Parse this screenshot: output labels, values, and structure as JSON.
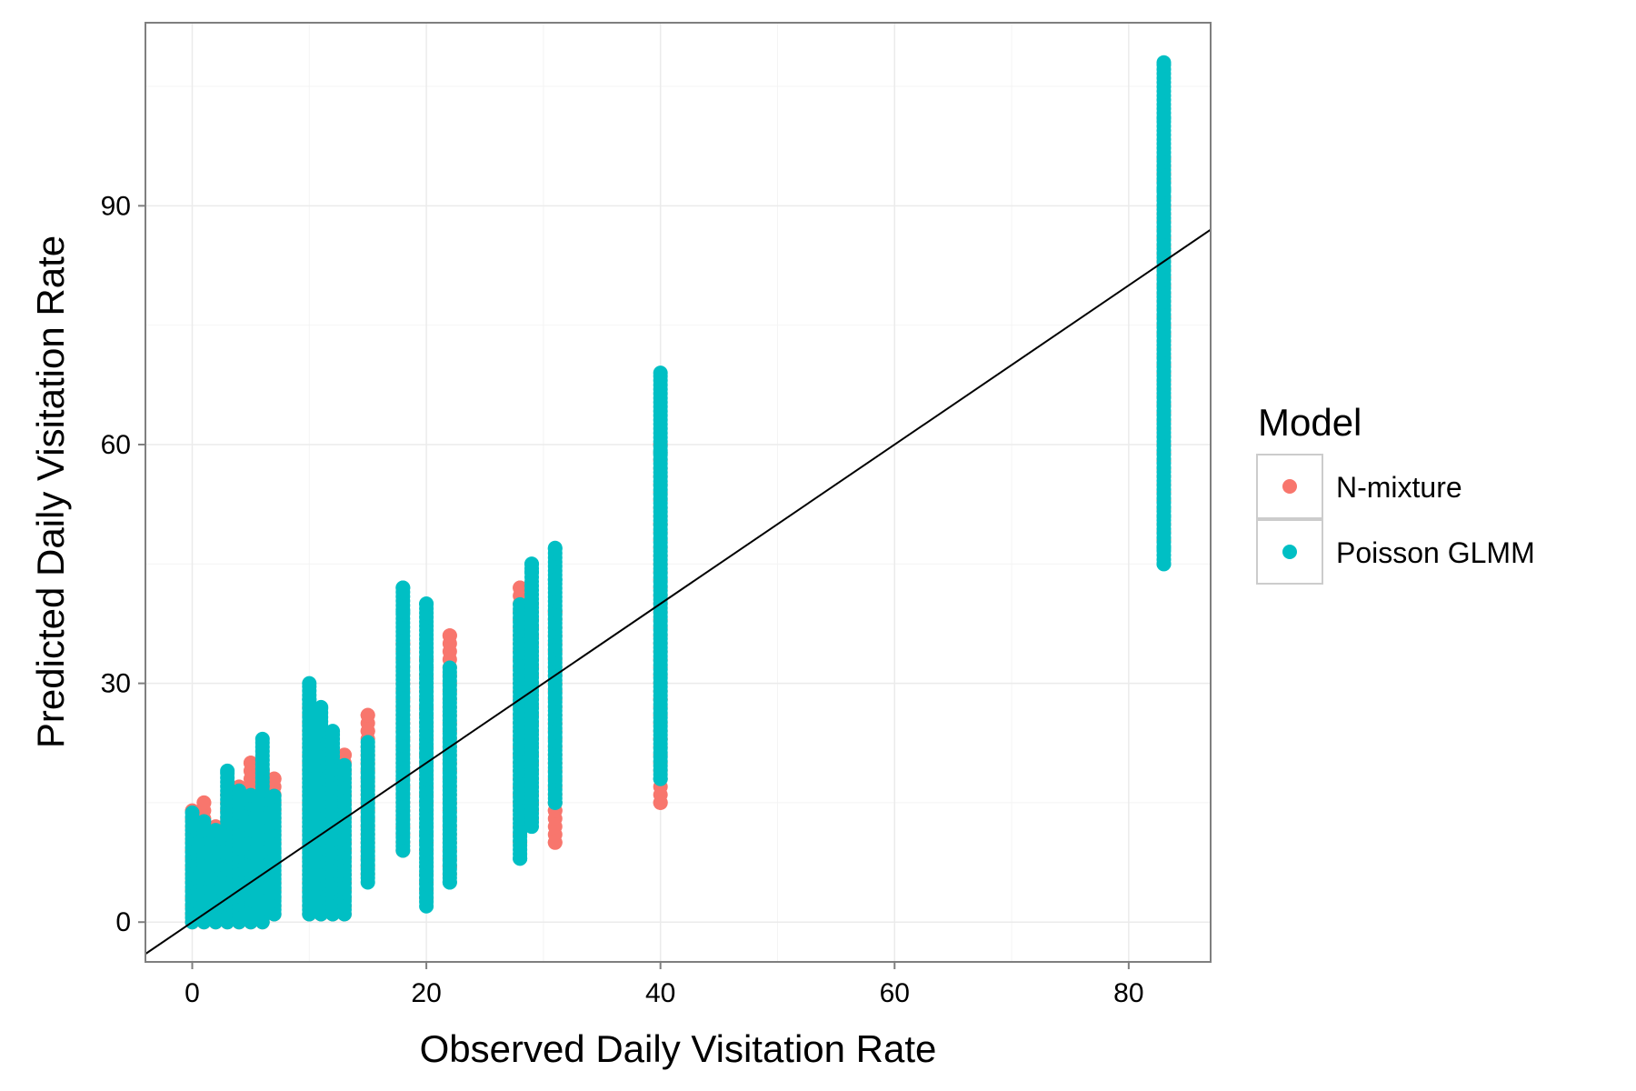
{
  "chart_data": {
    "type": "scatter",
    "title": "",
    "xlabel": "Observed Daily Visitation Rate",
    "ylabel": "Predicted Daily Visitation Rate",
    "xlim": [
      -4,
      87
    ],
    "ylim": [
      -5,
      113
    ],
    "x_ticks": [
      0,
      20,
      40,
      60,
      80
    ],
    "y_ticks": [
      0,
      30,
      60,
      90
    ],
    "grid": true,
    "legend": {
      "title": "Model",
      "position": "right"
    },
    "reference_line": {
      "intercept": 0,
      "slope": 1,
      "color": "#000000"
    },
    "series": [
      {
        "name": "N-mixture",
        "color": "#F8766D",
        "columns": [
          {
            "x": 0,
            "min": 0,
            "max": 14
          },
          {
            "x": 1,
            "min": 0,
            "max": 15
          },
          {
            "x": 2,
            "min": 0,
            "max": 12
          },
          {
            "x": 3,
            "min": 0,
            "max": 16
          },
          {
            "x": 4,
            "min": 0,
            "max": 17
          },
          {
            "x": 5,
            "min": 0,
            "max": 20
          },
          {
            "x": 6,
            "min": 0,
            "max": 19
          },
          {
            "x": 7,
            "min": 1,
            "max": 18
          },
          {
            "x": 10,
            "min": 1,
            "max": 27
          },
          {
            "x": 11,
            "min": 1,
            "max": 22
          },
          {
            "x": 12,
            "min": 1,
            "max": 21
          },
          {
            "x": 13,
            "min": 1,
            "max": 21
          },
          {
            "x": 15,
            "min": 6,
            "max": 26
          },
          {
            "x": 18,
            "min": 9,
            "max": 35
          },
          {
            "x": 20,
            "min": 3,
            "max": 33
          },
          {
            "x": 22,
            "min": 6,
            "max": 36
          },
          {
            "x": 28,
            "min": 10,
            "max": 42
          },
          {
            "x": 29,
            "min": 13,
            "max": 40
          },
          {
            "x": 31,
            "min": 10,
            "max": 39
          },
          {
            "x": 40,
            "min": 15,
            "max": 60
          },
          {
            "x": 83,
            "min": 48,
            "max": 96
          }
        ],
        "points": [
          {
            "x": 1,
            "y": 15
          },
          {
            "x": 5,
            "y": 20
          },
          {
            "x": 6,
            "y": 19
          },
          {
            "x": 7,
            "y": 18
          },
          {
            "x": 11,
            "y": 22
          },
          {
            "x": 13,
            "y": 21
          },
          {
            "x": 15,
            "y": 26
          },
          {
            "x": 15,
            "y": 24
          },
          {
            "x": 18,
            "y": 35
          },
          {
            "x": 20,
            "y": 33
          },
          {
            "x": 22,
            "y": 36
          },
          {
            "x": 22,
            "y": 7
          },
          {
            "x": 28,
            "y": 42
          },
          {
            "x": 29,
            "y": 40
          },
          {
            "x": 31,
            "y": 39
          },
          {
            "x": 31,
            "y": 14
          },
          {
            "x": 31,
            "y": 10
          },
          {
            "x": 40,
            "y": 60
          },
          {
            "x": 40,
            "y": 50
          },
          {
            "x": 40,
            "y": 28
          },
          {
            "x": 40,
            "y": 23
          },
          {
            "x": 40,
            "y": 15
          },
          {
            "x": 83,
            "y": 96
          },
          {
            "x": 83,
            "y": 94
          },
          {
            "x": 83,
            "y": 84
          },
          {
            "x": 83,
            "y": 74
          }
        ]
      },
      {
        "name": "Poisson GLMM",
        "color": "#00BFC4",
        "columns": [
          {
            "x": 0,
            "min": 0,
            "max": 14
          },
          {
            "x": 1,
            "min": 0,
            "max": 13
          },
          {
            "x": 2,
            "min": 0,
            "max": 12
          },
          {
            "x": 3,
            "min": 0,
            "max": 19
          },
          {
            "x": 4,
            "min": 0,
            "max": 17
          },
          {
            "x": 5,
            "min": 0,
            "max": 16
          },
          {
            "x": 6,
            "min": 0,
            "max": 23
          },
          {
            "x": 7,
            "min": 1,
            "max": 16
          },
          {
            "x": 10,
            "min": 1,
            "max": 30
          },
          {
            "x": 11,
            "min": 1,
            "max": 27
          },
          {
            "x": 12,
            "min": 1,
            "max": 24
          },
          {
            "x": 13,
            "min": 1,
            "max": 20
          },
          {
            "x": 15,
            "min": 5,
            "max": 23
          },
          {
            "x": 18,
            "min": 9,
            "max": 42
          },
          {
            "x": 20,
            "min": 2,
            "max": 40
          },
          {
            "x": 22,
            "min": 5,
            "max": 32
          },
          {
            "x": 28,
            "min": 8,
            "max": 40
          },
          {
            "x": 29,
            "min": 12,
            "max": 45
          },
          {
            "x": 31,
            "min": 15,
            "max": 47
          },
          {
            "x": 40,
            "min": 18,
            "max": 69
          },
          {
            "x": 83,
            "min": 45,
            "max": 108
          }
        ],
        "points": [
          {
            "x": 3,
            "y": 19
          },
          {
            "x": 6,
            "y": 23
          },
          {
            "x": 10,
            "y": 30
          },
          {
            "x": 10,
            "y": 28
          },
          {
            "x": 11,
            "y": 27
          },
          {
            "x": 12,
            "y": 24
          },
          {
            "x": 18,
            "y": 42
          },
          {
            "x": 18,
            "y": 39
          },
          {
            "x": 20,
            "y": 40
          },
          {
            "x": 20,
            "y": 32
          },
          {
            "x": 22,
            "y": 5
          },
          {
            "x": 28,
            "y": 8
          },
          {
            "x": 29,
            "y": 45
          },
          {
            "x": 29,
            "y": 44
          },
          {
            "x": 31,
            "y": 47
          },
          {
            "x": 31,
            "y": 43
          },
          {
            "x": 31,
            "y": 15
          },
          {
            "x": 40,
            "y": 69
          },
          {
            "x": 40,
            "y": 59
          },
          {
            "x": 40,
            "y": 18
          },
          {
            "x": 83,
            "y": 108
          },
          {
            "x": 83,
            "y": 101
          },
          {
            "x": 83,
            "y": 92
          },
          {
            "x": 83,
            "y": 51
          },
          {
            "x": 83,
            "y": 47
          },
          {
            "x": 83,
            "y": 45
          }
        ]
      }
    ]
  }
}
